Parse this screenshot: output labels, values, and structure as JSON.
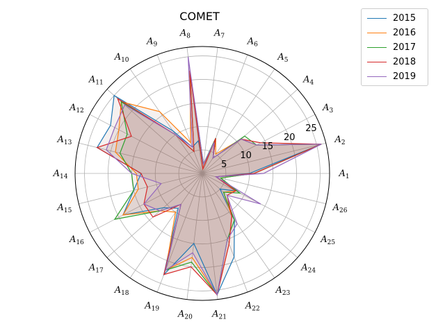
{
  "chart_data": {
    "type": "radar",
    "title": "COMET",
    "categories": [
      "A_1",
      "A_2",
      "A_3",
      "A_4",
      "A_5",
      "A_6",
      "A_7",
      "A_8",
      "A_9",
      "A_10",
      "A_11",
      "A_12",
      "A_13",
      "A_14",
      "A_15",
      "A_16",
      "A_17",
      "A_18",
      "A_19",
      "A_20",
      "A_21",
      "A_22",
      "A_23",
      "A_24",
      "A_25",
      "A_26"
    ],
    "category_labels": [
      {
        "base": "A",
        "sub": "1"
      },
      {
        "base": "A",
        "sub": "2"
      },
      {
        "base": "A",
        "sub": "3"
      },
      {
        "base": "A",
        "sub": "4"
      },
      {
        "base": "A",
        "sub": "5"
      },
      {
        "base": "A",
        "sub": "6"
      },
      {
        "base": "A",
        "sub": "7"
      },
      {
        "base": "A",
        "sub": "8"
      },
      {
        "base": "A",
        "sub": "9"
      },
      {
        "base": "A",
        "sub": "10"
      },
      {
        "base": "A",
        "sub": "11"
      },
      {
        "base": "A",
        "sub": "12"
      },
      {
        "base": "A",
        "sub": "13"
      },
      {
        "base": "A",
        "sub": "14"
      },
      {
        "base": "A",
        "sub": "15"
      },
      {
        "base": "A",
        "sub": "16"
      },
      {
        "base": "A",
        "sub": "17"
      },
      {
        "base": "A",
        "sub": "18"
      },
      {
        "base": "A",
        "sub": "19"
      },
      {
        "base": "A",
        "sub": "20"
      },
      {
        "base": "A",
        "sub": "21"
      },
      {
        "base": "A",
        "sub": "22"
      },
      {
        "base": "A",
        "sub": "23"
      },
      {
        "base": "A",
        "sub": "24"
      },
      {
        "base": "A",
        "sub": "25"
      },
      {
        "base": "A",
        "sub": "26"
      }
    ],
    "radial_ticks": [
      "5",
      "10",
      "15",
      "20",
      "25"
    ],
    "rmax": 27,
    "grid": true,
    "legend_position": "outside top-right",
    "fill_color": "#8c564b",
    "fill_opacity": 0.2,
    "series": [
      {
        "name": "2015",
        "color": "#1f77b4",
        "values": [
          10,
          26,
          13,
          11,
          4,
          8,
          2,
          7,
          6,
          11,
          25,
          22,
          23,
          13,
          15,
          19,
          11,
          9,
          23,
          15,
          26,
          19,
          12,
          5,
          8,
          3
        ]
      },
      {
        "name": "2016",
        "color": "#ff7f0e",
        "values": [
          11,
          26,
          13,
          11,
          5,
          8,
          1,
          22,
          7,
          16,
          23,
          20,
          19,
          14,
          14,
          19,
          12,
          10,
          22,
          18,
          26,
          16,
          11,
          6,
          8,
          4
        ]
      },
      {
        "name": "2017",
        "color": "#2ca02c",
        "values": [
          11,
          26,
          13,
          12,
          4,
          8,
          2,
          22,
          5,
          10,
          23,
          18,
          18,
          15,
          15,
          21,
          12,
          8,
          22,
          19,
          26,
          15,
          12,
          6,
          9,
          4
        ]
      },
      {
        "name": "2018",
        "color": "#d62728",
        "values": [
          11,
          26,
          14,
          11,
          4,
          8,
          1,
          22,
          5,
          10,
          24,
          17,
          23,
          13,
          12,
          14,
          14,
          8,
          23,
          20,
          26,
          16,
          11,
          7,
          8,
          3
        ]
      },
      {
        "name": "2019",
        "color": "#9467bd",
        "values": [
          13,
          26,
          13,
          11,
          4,
          7,
          2,
          25,
          6,
          10,
          22,
          21,
          21,
          15,
          9,
          14,
          12,
          8,
          22,
          17,
          26,
          15,
          13,
          7,
          14,
          3
        ]
      }
    ]
  }
}
